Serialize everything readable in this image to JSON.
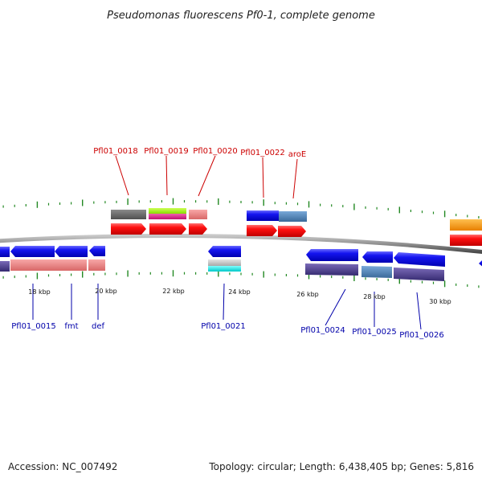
{
  "title": "Pseudomonas fluorescens Pf0-1, complete genome",
  "footer": {
    "accession": "Accession: NC_007492",
    "stats": "Topology: circular; Length: 6,438,405 bp; Genes: 5,816"
  },
  "axis": {
    "tick_labels": [
      "18 kbp",
      "20 kbp",
      "22 kbp",
      "24 kbp",
      "26 kbp",
      "28 kbp",
      "30 kbp"
    ]
  },
  "genes_top": [
    {
      "id": "Pfl01_0018",
      "color": "#cc0000"
    },
    {
      "id": "Pfl01_0019",
      "color": "#cc0000"
    },
    {
      "id": "Pfl01_0020",
      "color": "#cc0000"
    },
    {
      "id": "Pfl01_0022",
      "color": "#cc0000"
    },
    {
      "id": "aroE",
      "color": "#cc0000"
    }
  ],
  "genes_bottom": [
    {
      "id": "Pfl01_0015",
      "color": "#0000aa"
    },
    {
      "id": "fmt",
      "color": "#0000aa"
    },
    {
      "id": "def",
      "color": "#0000aa"
    },
    {
      "id": "Pfl01_0021",
      "color": "#0000aa"
    },
    {
      "id": "Pfl01_0024",
      "color": "#0000aa"
    },
    {
      "id": "Pfl01_0025",
      "color": "#0000aa"
    },
    {
      "id": "Pfl01_0026",
      "color": "#0000aa"
    }
  ],
  "colors": {
    "forward_cds": "#ff0000",
    "reverse_cds": "#0000ee",
    "backbone": "#888888",
    "ticks": "#228822",
    "category_gray": "#606060",
    "category_lime": "#99ee00",
    "category_magenta": "#e0208a",
    "category_pink": "#f08080",
    "category_steelblue": "#4682b4",
    "category_slate": "#483d8b",
    "category_cyan": "#00e0e0",
    "category_silver": "#c0c0c0",
    "category_orange": "#ff9900"
  }
}
